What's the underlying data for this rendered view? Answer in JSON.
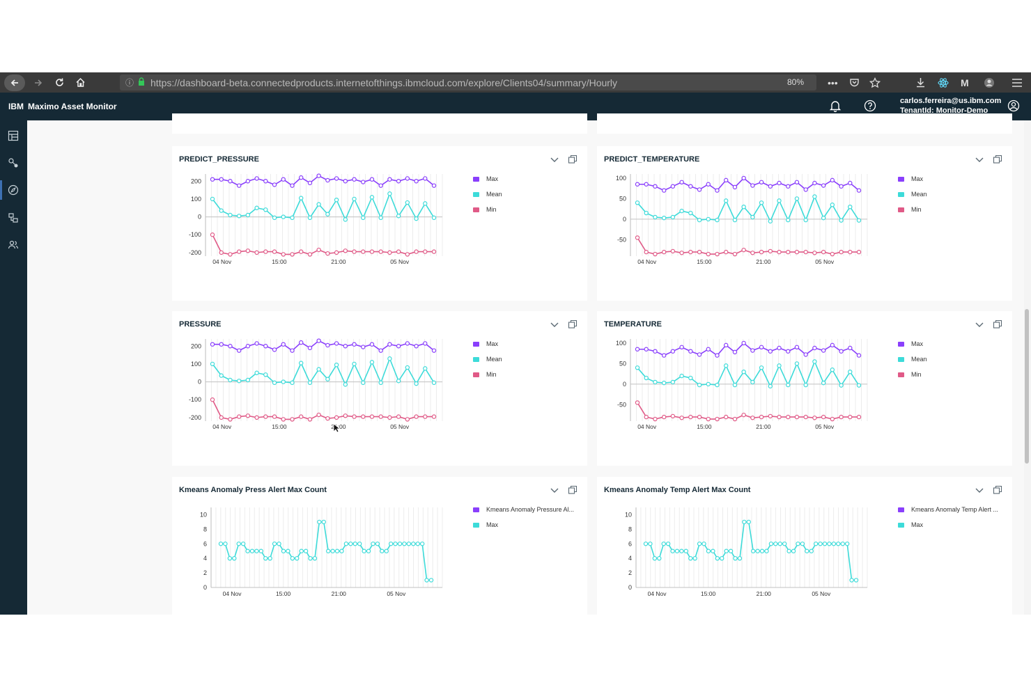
{
  "browser": {
    "url": "https://dashboard-beta.connectedproducts.internetofthings.ibmcloud.com/explore/Clients04/summary/Hourly",
    "zoom": "80%"
  },
  "app": {
    "brand": "IBM",
    "title": "Maximo Asset Monitor",
    "user_email": "carlos.ferreira@us.ibm.com",
    "tenant": "TenantId: Monitor-Demo"
  },
  "sidebar": {
    "icons": [
      "dashboard-icon",
      "devices-icon",
      "explore-icon",
      "entity-types-icon",
      "users-icon"
    ]
  },
  "colors": {
    "max": "#8a3ffc",
    "mean": "#3ddbd9",
    "min": "#e05a87",
    "header": "#152935"
  },
  "cards": [
    {
      "title": "PREDICT_PRESSURE",
      "legend": [
        "Max",
        "Mean",
        "Min"
      ],
      "chart_data": {
        "type": "line",
        "x_ticks": [
          "04 Nov",
          "15:00",
          "21:00",
          "05 Nov"
        ],
        "y_ticks": [
          "200",
          "100",
          "0",
          "-100",
          "-200"
        ],
        "ylim": [
          -220,
          240
        ],
        "series": [
          {
            "name": "Max",
            "values": [
              210,
              210,
              200,
              175,
              200,
              215,
              200,
              180,
              210,
              175,
              220,
              190,
              230,
              205,
              215,
              200,
              210,
              195,
              210,
              175,
              210,
              200,
              215,
              200,
              215,
              175
            ]
          },
          {
            "name": "Mean",
            "values": [
              100,
              35,
              10,
              5,
              10,
              50,
              40,
              -5,
              0,
              -5,
              105,
              -5,
              70,
              15,
              95,
              -15,
              100,
              -5,
              110,
              -5,
              130,
              5,
              80,
              -10,
              75,
              -5
            ]
          },
          {
            "name": "Min",
            "values": [
              -100,
              -200,
              -210,
              -195,
              -190,
              -200,
              -195,
              -195,
              -210,
              -210,
              -195,
              -210,
              -185,
              -205,
              -200,
              -190,
              -195,
              -195,
              -195,
              -195,
              -200,
              -195,
              -210,
              -195,
              -195,
              -195
            ]
          }
        ]
      }
    },
    {
      "title": "PREDICT_TEMPERATURE",
      "legend": [
        "Max",
        "Mean",
        "Min"
      ],
      "chart_data": {
        "type": "line",
        "x_ticks": [
          "04 Nov",
          "15:00",
          "21:00",
          "05 Nov"
        ],
        "y_ticks": [
          "100",
          "50",
          "0",
          "-50"
        ],
        "ylim": [
          -90,
          110
        ],
        "series": [
          {
            "name": "Max",
            "values": [
              85,
              85,
              80,
              70,
              80,
              90,
              80,
              72,
              85,
              70,
              95,
              78,
              100,
              82,
              90,
              80,
              88,
              80,
              90,
              72,
              88,
              82,
              95,
              80,
              88,
              70
            ]
          },
          {
            "name": "Mean",
            "values": [
              40,
              15,
              5,
              3,
              5,
              20,
              15,
              -2,
              0,
              -2,
              45,
              -2,
              30,
              5,
              40,
              -5,
              45,
              -2,
              50,
              -2,
              55,
              3,
              35,
              -3,
              30,
              -3
            ]
          },
          {
            "name": "Min",
            "values": [
              -45,
              -80,
              -85,
              -80,
              -78,
              -82,
              -80,
              -80,
              -85,
              -85,
              -80,
              -85,
              -75,
              -82,
              -80,
              -78,
              -80,
              -80,
              -80,
              -80,
              -82,
              -80,
              -85,
              -80,
              -80,
              -80
            ]
          }
        ]
      }
    },
    {
      "title": "PRESSURE",
      "legend": [
        "Max",
        "Mean",
        "Min"
      ],
      "chart_data": {
        "type": "line",
        "x_ticks": [
          "04 Nov",
          "15:00",
          "21:00",
          "05 Nov"
        ],
        "y_ticks": [
          "200",
          "100",
          "0",
          "-100",
          "-200"
        ],
        "ylim": [
          -220,
          240
        ],
        "series": [
          {
            "name": "Max",
            "values": [
              210,
              210,
              200,
              175,
              200,
              215,
              200,
              180,
              210,
              175,
              220,
              190,
              230,
              205,
              215,
              200,
              210,
              195,
              210,
              175,
              210,
              200,
              215,
              200,
              215,
              175
            ]
          },
          {
            "name": "Mean",
            "values": [
              100,
              35,
              10,
              5,
              10,
              50,
              40,
              -5,
              0,
              -5,
              105,
              -5,
              70,
              15,
              95,
              -15,
              100,
              -5,
              110,
              -5,
              130,
              5,
              80,
              -10,
              75,
              -5
            ]
          },
          {
            "name": "Min",
            "values": [
              -100,
              -200,
              -210,
              -195,
              -190,
              -200,
              -195,
              -195,
              -210,
              -210,
              -195,
              -210,
              -185,
              -205,
              -200,
              -190,
              -195,
              -195,
              -195,
              -195,
              -200,
              -195,
              -210,
              -195,
              -195,
              -195
            ]
          }
        ]
      }
    },
    {
      "title": "TEMPERATURE",
      "legend": [
        "Max",
        "Mean",
        "Min"
      ],
      "chart_data": {
        "type": "line",
        "x_ticks": [
          "04 Nov",
          "15:00",
          "21:00",
          "05 Nov"
        ],
        "y_ticks": [
          "100",
          "50",
          "0",
          "-50"
        ],
        "ylim": [
          -90,
          110
        ],
        "series": [
          {
            "name": "Max",
            "values": [
              85,
              85,
              80,
              70,
              80,
              90,
              80,
              72,
              85,
              70,
              95,
              78,
              100,
              82,
              90,
              80,
              88,
              80,
              90,
              72,
              88,
              82,
              95,
              80,
              88,
              70
            ]
          },
          {
            "name": "Mean",
            "values": [
              40,
              15,
              5,
              3,
              5,
              20,
              15,
              -2,
              0,
              -2,
              45,
              -2,
              30,
              5,
              40,
              -5,
              45,
              -2,
              50,
              -2,
              55,
              3,
              35,
              -3,
              30,
              -3
            ]
          },
          {
            "name": "Min",
            "values": [
              -45,
              -80,
              -85,
              -80,
              -78,
              -82,
              -80,
              -80,
              -85,
              -85,
              -80,
              -85,
              -75,
              -82,
              -80,
              -78,
              -80,
              -80,
              -80,
              -80,
              -82,
              -80,
              -85,
              -80,
              -80,
              -80
            ]
          }
        ]
      }
    },
    {
      "title": "Kmeans Anomaly Press Alert Max Count",
      "legend": [
        "Kmeans Anomaly Pressure Al...",
        "Max"
      ],
      "chart_data": {
        "type": "line",
        "x_ticks": [
          "04 Nov",
          "15:00",
          "21:00",
          "05 Nov"
        ],
        "y_ticks": [
          "10",
          "8",
          "6",
          "4",
          "2",
          "0"
        ],
        "ylim": [
          0,
          11
        ],
        "series": [
          {
            "name": "Max",
            "values": [
              6,
              6,
              4,
              4,
              6,
              6,
              5,
              5,
              5,
              5,
              4,
              4,
              6,
              6,
              5,
              5,
              4,
              4,
              5,
              5,
              4,
              4,
              9,
              9,
              5,
              5,
              5,
              5,
              6,
              6,
              6,
              6,
              5,
              5,
              6,
              6,
              5,
              5,
              6,
              6,
              6,
              6,
              6,
              6,
              6,
              6,
              1,
              1
            ]
          }
        ]
      }
    },
    {
      "title": "Kmeans Anomaly Temp Alert Max Count",
      "legend": [
        "Kmeans Anomaly Temp Alert ...",
        "Max"
      ],
      "chart_data": {
        "type": "line",
        "x_ticks": [
          "04 Nov",
          "15:00",
          "21:00",
          "05 Nov"
        ],
        "y_ticks": [
          "10",
          "8",
          "6",
          "4",
          "2",
          "0"
        ],
        "ylim": [
          0,
          11
        ],
        "series": [
          {
            "name": "Max",
            "values": [
              6,
              6,
              4,
              4,
              6,
              6,
              5,
              5,
              5,
              5,
              4,
              4,
              6,
              6,
              5,
              5,
              4,
              4,
              5,
              5,
              4,
              4,
              9,
              9,
              5,
              5,
              5,
              5,
              6,
              6,
              6,
              6,
              5,
              5,
              6,
              6,
              5,
              5,
              6,
              6,
              6,
              6,
              6,
              6,
              6,
              6,
              1,
              1
            ]
          }
        ]
      }
    }
  ]
}
